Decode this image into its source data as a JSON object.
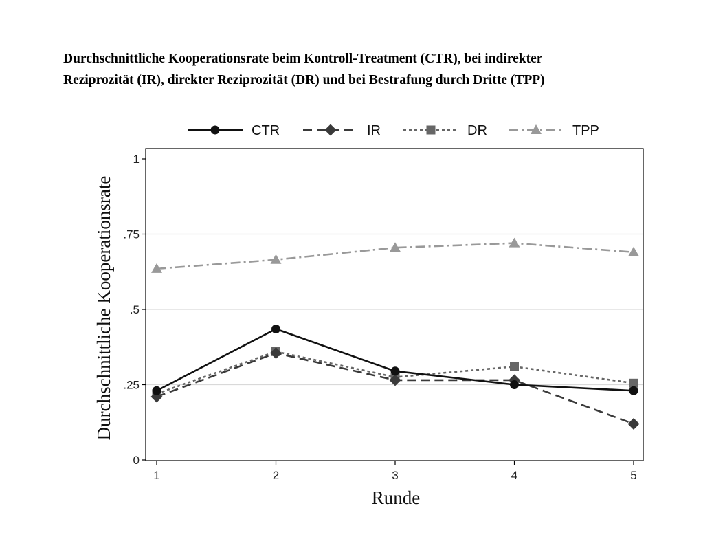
{
  "chart_data": {
    "type": "line",
    "title_line1": "Durchschnittliche Kooperationsrate beim Kontroll-Treatment (CTR), bei indirekter",
    "title_line2": "Reziprozität (IR), direkter Reziprozität (DR) und bei Bestrafung durch Dritte (TPP)",
    "xlabel": "Runde",
    "ylabel": "Durchschnittliche Kooperationsrate",
    "x": [
      1,
      2,
      3,
      4,
      5
    ],
    "xlim": [
      1,
      5
    ],
    "ylim": [
      0,
      1
    ],
    "yticks": [
      {
        "value": 0,
        "label": "0"
      },
      {
        "value": 0.25,
        "label": ".25"
      },
      {
        "value": 0.5,
        "label": ".5"
      },
      {
        "value": 0.75,
        "label": ".75"
      },
      {
        "value": 1,
        "label": "1"
      }
    ],
    "gridlines": [
      0.25,
      0.5,
      0.75
    ],
    "legend_position": "top",
    "series": [
      {
        "name": "CTR",
        "values": [
          0.23,
          0.435,
          0.295,
          0.25,
          0.23
        ],
        "color": "#111111",
        "marker": "circle",
        "dash": "solid"
      },
      {
        "name": "IR",
        "values": [
          0.21,
          0.355,
          0.265,
          0.265,
          0.12
        ],
        "color": "#3a3a3a",
        "marker": "diamond",
        "dash": "dashed"
      },
      {
        "name": "DR",
        "values": [
          0.22,
          0.36,
          0.275,
          0.31,
          0.255
        ],
        "color": "#666666",
        "marker": "square",
        "dash": "dotted"
      },
      {
        "name": "TPP",
        "values": [
          0.635,
          0.665,
          0.705,
          0.72,
          0.69
        ],
        "color": "#999999",
        "marker": "triangle",
        "dash": "dashdot"
      }
    ]
  }
}
